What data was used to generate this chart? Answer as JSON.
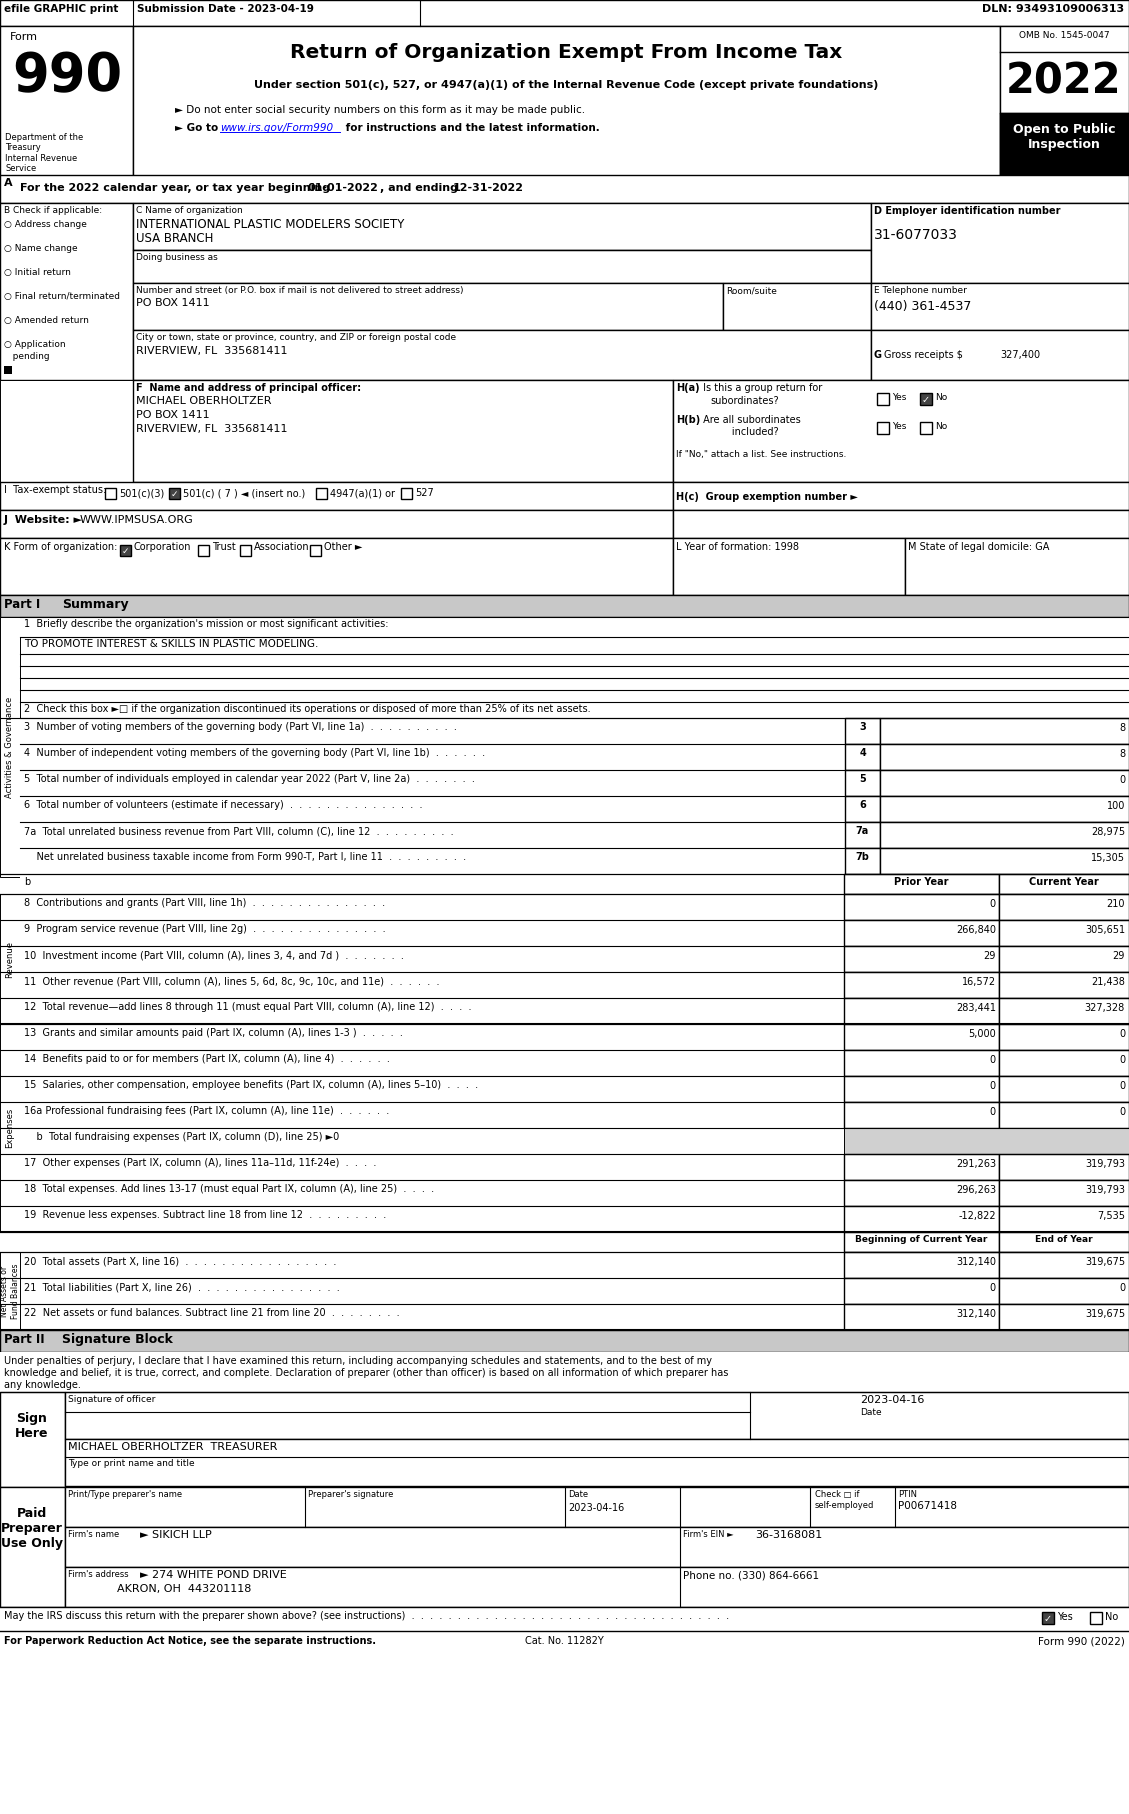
{
  "main_title": "Return of Organization Exempt From Income Tax",
  "subtitle1": "Under section 501(c), 527, or 4947(a)(1) of the Internal Revenue Code (except private foundations)",
  "subtitle2": "► Do not enter social security numbers on this form as it may be made public.",
  "omb": "OMB No. 1545-0047",
  "year": "2022",
  "open_to": "Open to Public\nInspection",
  "dept": "Department of the\nTreasury\nInternal Revenue\nService",
  "sig_text": "Under penalties of perjury, I declare that I have examined this return, including accompanying schedules and statements, and to the best of my\nknowledge and belief, it is true, correct, and complete. Declaration of preparer (other than officer) is based on all information of which preparer has\nany knowledge.",
  "bg_color": "#ffffff"
}
